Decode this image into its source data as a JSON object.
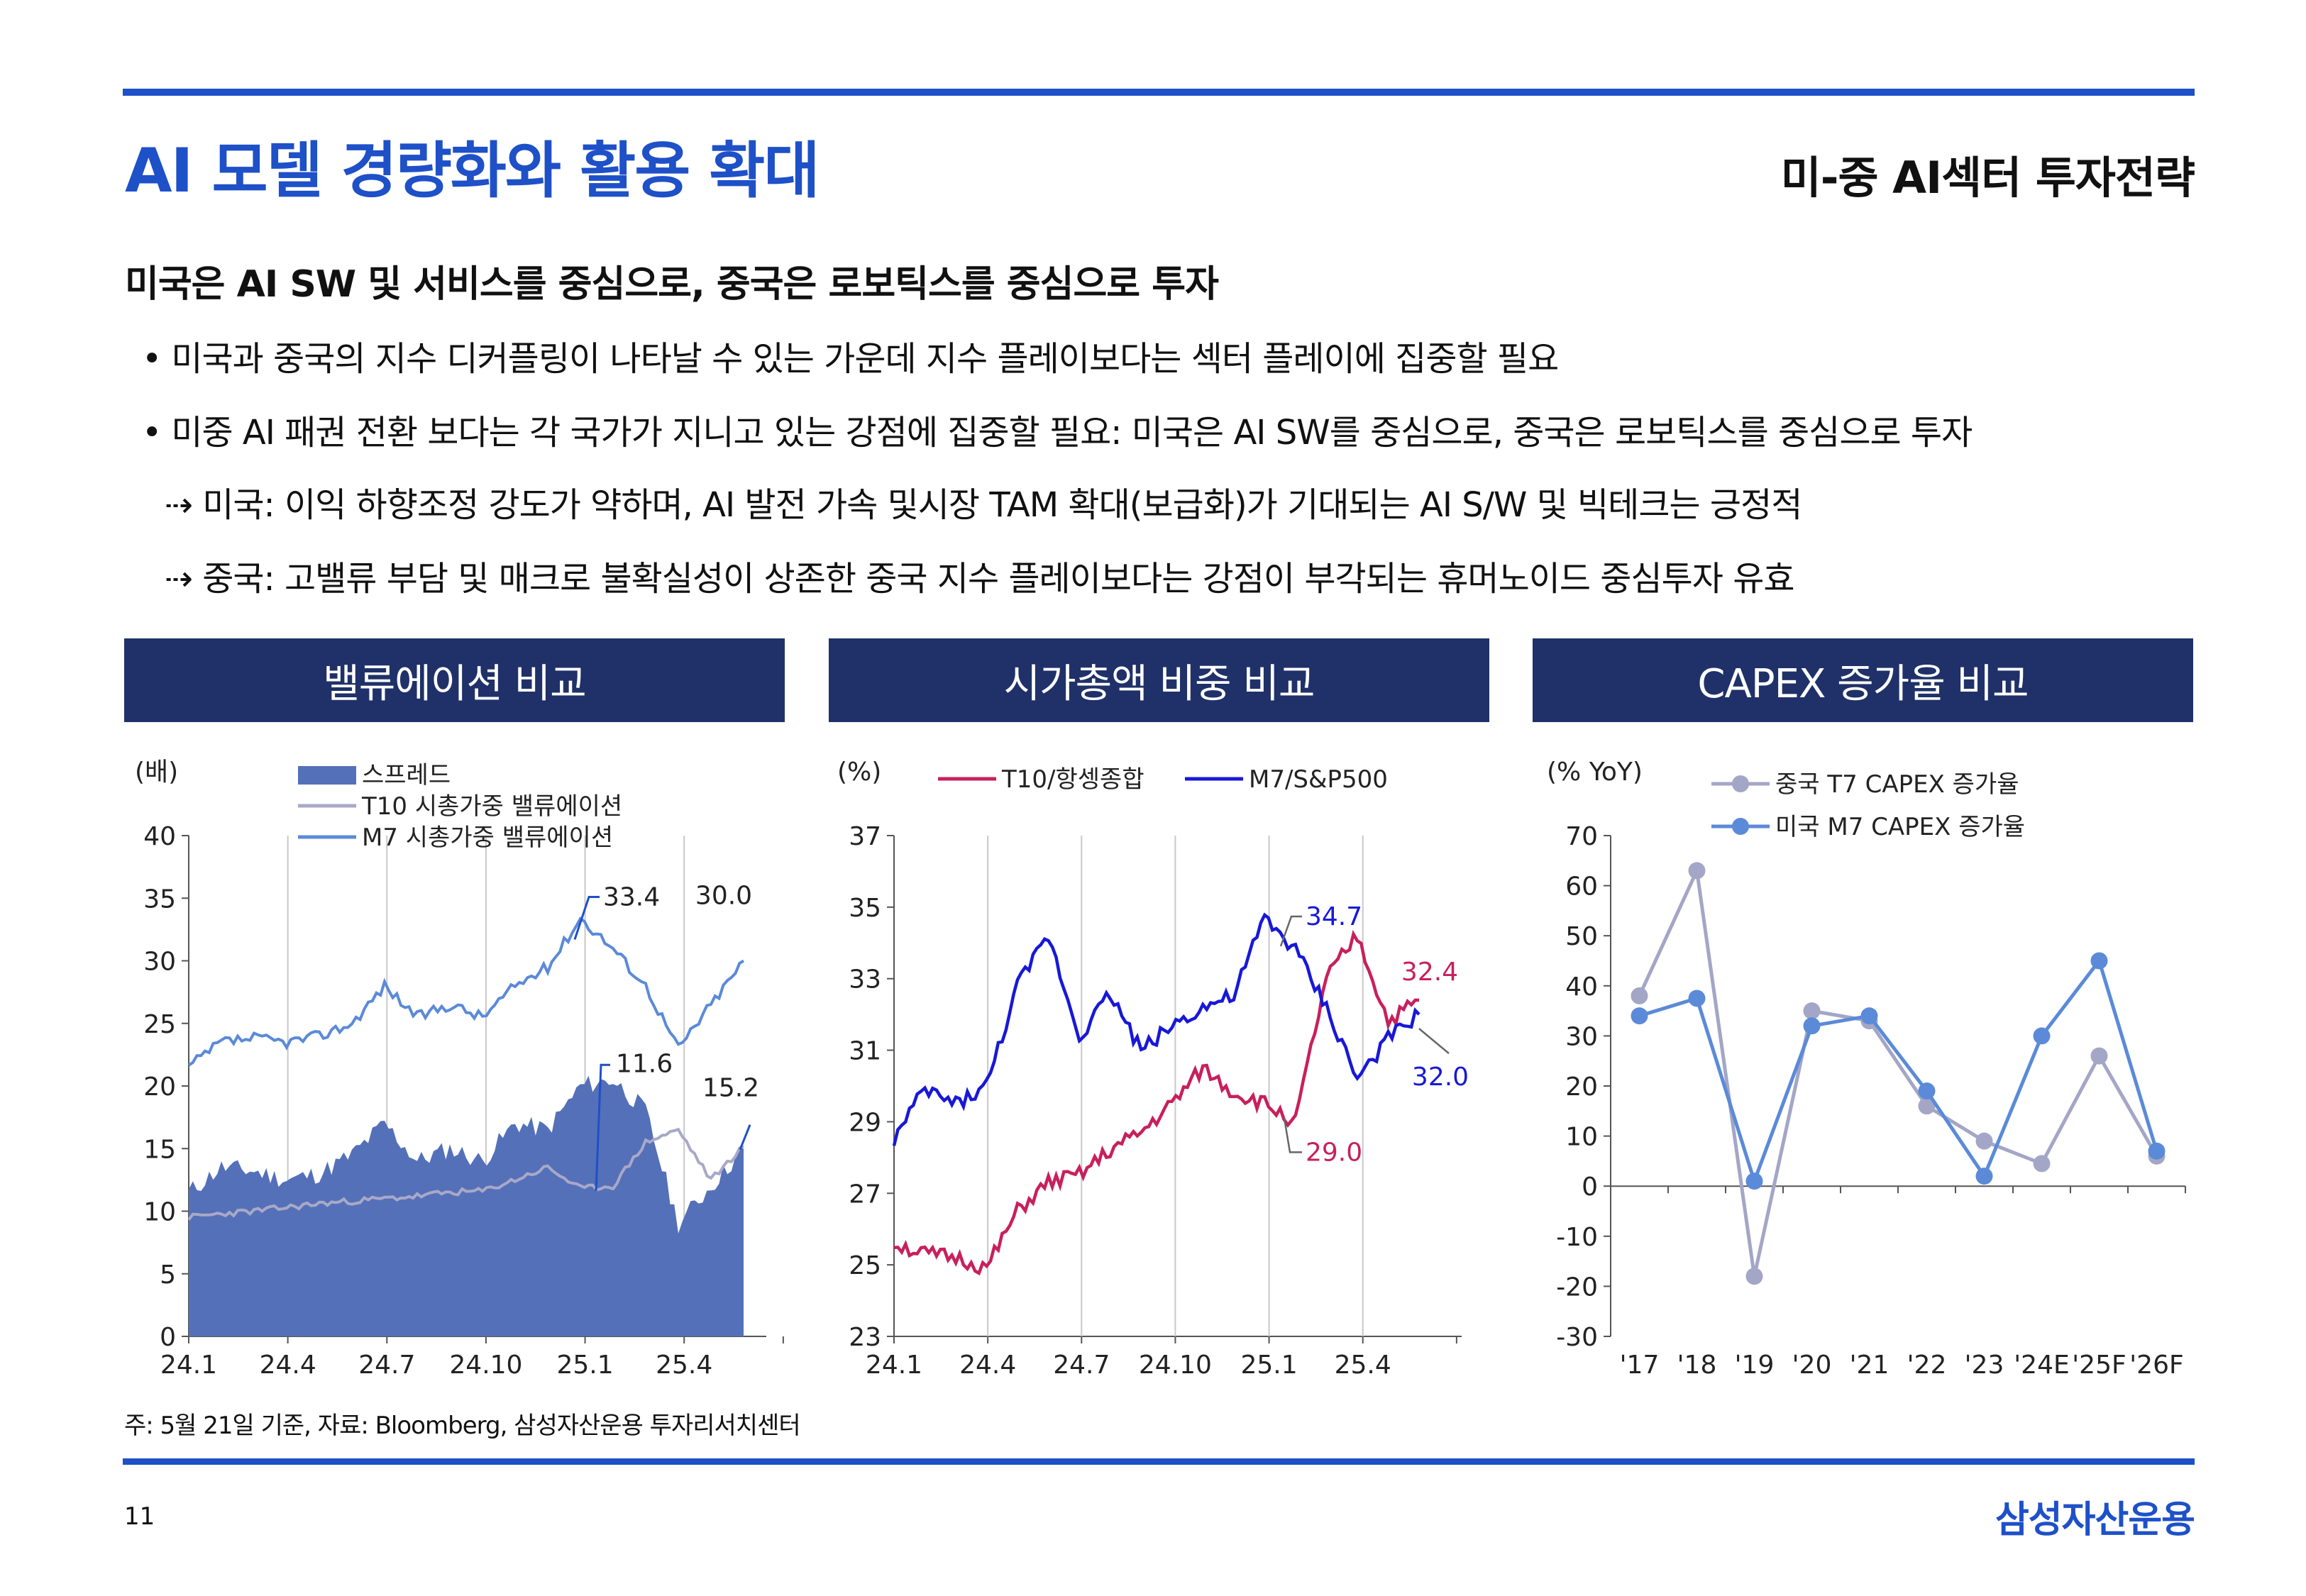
{
  "header": {
    "title": "AI 모델 경량화와 활용 확대",
    "section": "미-중 AI섹터 투자전략",
    "rule_color": "#1e50c8"
  },
  "body": {
    "subheading": "미국은 AI SW 및 서비스를 중심으로, 중국은 로보틱스를 중심으로 투자",
    "bullet_mark": "•",
    "arrow_mark": "⇢",
    "bullets": [
      "미국과 중국의 지수 디커플링이 나타날 수 있는 가운데 지수 플레이보다는 섹터 플레이에 집중할 필요",
      "미중 AI 패권 전환 보다는 각 국가가 지니고 있는 강점에 집중할 필요: 미국은 AI SW를 중심으로, 중국은 로보틱스를 중심으로 투자"
    ],
    "sub_bullets": [
      "미국: 이익 하향조정 강도가 약하며, AI 발전 가속 및시장 TAM 확대(보급화)가 기대되는 AI S/W 및 빅테크는 긍정적",
      "중국: 고밸류 부담 및 매크로 불확실성이 상존한 중국 지수 플레이보다는 강점이 부각되는 휴머노이드 중심투자 유효"
    ]
  },
  "charts": {
    "valuation_header": "밸류에이션 비교",
    "marketcap_header": "시가총액 비중 비교",
    "capex_header": "CAPEX 증가율 비교"
  },
  "chart_data": [
    {
      "type": "area",
      "unit_label": "(배)",
      "ylim": [
        0,
        40
      ],
      "yticks": [
        0,
        5,
        10,
        15,
        20,
        25,
        30,
        35,
        40
      ],
      "xticks": [
        "24.1",
        "24.4",
        "24.7",
        "24.10",
        "25.1",
        "25.4"
      ],
      "x": [
        "24.1",
        "24.2",
        "24.3",
        "24.4",
        "24.5",
        "24.6",
        "24.7",
        "24.8",
        "24.9",
        "24.10",
        "24.11",
        "24.12",
        "25.1",
        "25.2",
        "25.3",
        "25.4",
        "25.5",
        "25.5.21"
      ],
      "series": [
        {
          "name": "스프레드",
          "style": "area",
          "color": "#5470b8",
          "values": [
            11.5,
            13.5,
            13.2,
            12.5,
            13,
            14.5,
            17,
            14,
            15,
            14,
            17,
            16.5,
            20,
            20.5,
            18,
            9,
            12,
            15
          ]
        },
        {
          "name": "T10 시총가중 밸류에이션",
          "style": "line",
          "color": "#a8a8c8",
          "values": [
            9.5,
            9.8,
            10,
            10.3,
            10.6,
            10.8,
            11,
            11.2,
            11.5,
            11.6,
            12.5,
            13.5,
            11.8,
            12,
            15.5,
            16.5,
            12.5,
            15.2
          ]
        },
        {
          "name": "M7 시총가중 밸류에이션",
          "style": "line",
          "color": "#5b8ad8",
          "values": [
            21.5,
            23.5,
            23.8,
            23.5,
            24,
            25,
            28,
            25.5,
            26.5,
            25.5,
            28,
            29.5,
            33.4,
            31,
            28,
            23,
            26.5,
            30.0
          ]
        }
      ],
      "annotations": [
        {
          "label": "33.4",
          "series": "M7 시총가중 밸류에이션"
        },
        {
          "label": "30.0",
          "series": "M7 시총가중 밸류에이션"
        },
        {
          "label": "11.6",
          "series": "T10 시총가중 밸류에이션"
        },
        {
          "label": "15.2",
          "series": "T10 시총가중 밸류에이션"
        }
      ]
    },
    {
      "type": "line",
      "unit_label": "(%)",
      "ylim": [
        23,
        37
      ],
      "yticks": [
        23,
        25,
        27,
        29,
        31,
        33,
        35,
        37
      ],
      "xticks": [
        "24.1",
        "24.4",
        "24.7",
        "24.10",
        "25.1",
        "25.4"
      ],
      "x": [
        "24.1",
        "24.2",
        "24.3",
        "24.4",
        "24.5",
        "24.6",
        "24.7",
        "24.8",
        "24.9",
        "24.10",
        "24.11",
        "24.12",
        "25.1",
        "25.2",
        "25.3",
        "25.4",
        "25.5",
        "25.5.21"
      ],
      "series": [
        {
          "name": "T10/항셍종합",
          "color": "#c8205c",
          "values": [
            25.6,
            25.3,
            25.2,
            24.9,
            26.5,
            27.3,
            27.5,
            28.2,
            28.7,
            29.5,
            30.5,
            29.8,
            29.5,
            29.0,
            33.0,
            34.2,
            31.8,
            32.4
          ]
        },
        {
          "name": "M7/S&P500",
          "color": "#1818d8",
          "values": [
            28.5,
            29.9,
            29.5,
            30,
            32.8,
            34.2,
            31.4,
            32.6,
            31,
            31.7,
            32.2,
            32.5,
            34.7,
            33.8,
            32.2,
            30.2,
            31.3,
            32.0
          ]
        }
      ],
      "annotations": [
        {
          "label": "34.7",
          "series": "M7/S&P500"
        },
        {
          "label": "32.4",
          "series": "T10/항셍종합"
        },
        {
          "label": "32.0",
          "series": "M7/S&P500"
        },
        {
          "label": "29.0",
          "series": "T10/항셍종합"
        }
      ]
    },
    {
      "type": "line",
      "unit_label": "(% YoY)",
      "ylim": [
        -30,
        70
      ],
      "yticks": [
        -30,
        -20,
        -10,
        0,
        10,
        20,
        30,
        40,
        50,
        60,
        70
      ],
      "categories": [
        "'17",
        "'18",
        "'19",
        "'20",
        "'21",
        "'22",
        "'23",
        "'24E",
        "'25F",
        "'26F"
      ],
      "series": [
        {
          "name": "중국 T7 CAPEX 증가율",
          "color": "#a3a6c6",
          "values": [
            38,
            63,
            -18,
            35,
            33,
            16,
            9,
            4.5,
            26,
            6
          ]
        },
        {
          "name": "미국 M7 CAPEX 증가율",
          "color": "#5b8ad8",
          "values": [
            34,
            37.5,
            1,
            32,
            34,
            19,
            2,
            30,
            45,
            7
          ]
        }
      ]
    }
  ],
  "footer": {
    "note": "주: 5월 21일 기준, 자료: Bloomberg, 삼성자산운용 투자리서치센터",
    "page_number": "11",
    "brand": "삼성자산운용"
  }
}
